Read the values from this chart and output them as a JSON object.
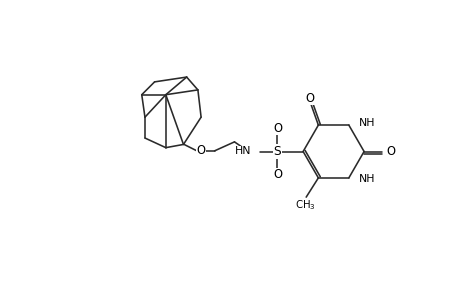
{
  "bg_color": "#ffffff",
  "line_color": "#2a2a2a",
  "text_color": "#000000",
  "line_width": 1.15,
  "font_size": 7.8,
  "fig_width": 4.6,
  "fig_height": 3.0,
  "dpi": 100,
  "xlim": [
    -0.5,
    10.5
  ],
  "ylim": [
    0.0,
    7.2
  ]
}
